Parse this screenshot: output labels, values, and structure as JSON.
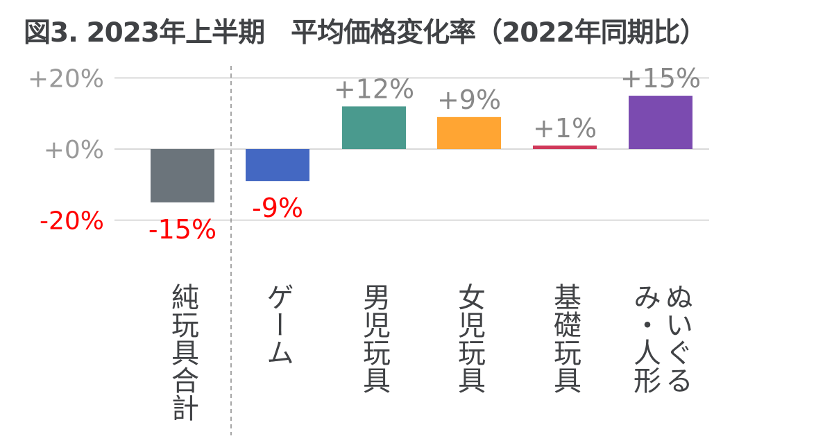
{
  "title": "図3. 2023年上半期　平均価格変化率（2022年同期比）",
  "chart_data": {
    "type": "bar",
    "title": "図3. 2023年上半期　平均価格変化率（2022年同期比）",
    "xlabel": "",
    "ylabel": "",
    "ylim": [
      -20,
      20
    ],
    "yticks": [
      20,
      0,
      -20
    ],
    "ytick_labels": [
      "+20%",
      "+0%",
      "-20%"
    ],
    "grid": true,
    "categories": [
      "純玩具合計",
      "ゲーム",
      "男児玩具",
      "女児玩具",
      "基礎玩具",
      "ぬいぐるみ・人形"
    ],
    "values": [
      -15,
      -9,
      12,
      9,
      1,
      15
    ],
    "data_labels": [
      "-15%",
      "-9%",
      "+12%",
      "+9%",
      "+1%",
      "+15%"
    ],
    "colors": [
      "#6b747b",
      "#4468c2",
      "#4a9a8e",
      "#ffa533",
      "#d0395a",
      "#7b4bb0"
    ],
    "positive_label_color": "#888888",
    "negative_label_color": "#ff0000",
    "separator_after_category": "純玩具合計"
  }
}
